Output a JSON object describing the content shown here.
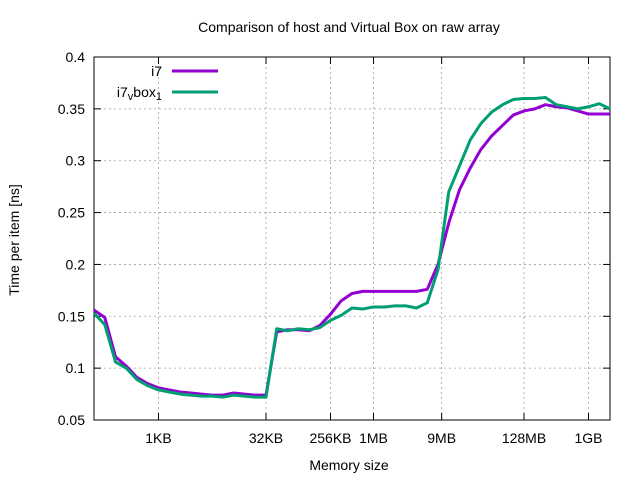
{
  "chart_data": {
    "type": "line",
    "title": "Comparison of host and Virtual Box on raw array",
    "xlabel": "Memory size",
    "ylabel": "Time per item [ns]",
    "x_scale": "log2",
    "x_unit": "bytes",
    "xlim": [
      128,
      2147483648
    ],
    "ylim": [
      0.05,
      0.4
    ],
    "grid": true,
    "legend_placement": "top-left",
    "x_ticks": [
      {
        "value": 1024,
        "label": "1KB"
      },
      {
        "value": 32768,
        "label": "32KB"
      },
      {
        "value": 262144,
        "label": "256KB"
      },
      {
        "value": 1048576,
        "label": "1MB"
      },
      {
        "value": 9437184,
        "label": "9MB"
      },
      {
        "value": 134217728,
        "label": "128MB"
      },
      {
        "value": 1073741824,
        "label": "1GB"
      }
    ],
    "y_ticks": [
      {
        "value": 0.05,
        "label": "0.05"
      },
      {
        "value": 0.1,
        "label": "0.1"
      },
      {
        "value": 0.15,
        "label": "0.15"
      },
      {
        "value": 0.2,
        "label": "0.2"
      },
      {
        "value": 0.25,
        "label": "0.25"
      },
      {
        "value": 0.3,
        "label": "0.3"
      },
      {
        "value": 0.35,
        "label": "0.35"
      },
      {
        "value": 0.4,
        "label": "0.4"
      }
    ],
    "series": [
      {
        "name": "i7",
        "legend_parts": [
          {
            "text": "i7",
            "shift": "none"
          }
        ],
        "color": "#9400d3",
        "points": [
          [
            128,
            0.156
          ],
          [
            181,
            0.149
          ],
          [
            256,
            0.111
          ],
          [
            362,
            0.102
          ],
          [
            512,
            0.091
          ],
          [
            724,
            0.085
          ],
          [
            1024,
            0.081
          ],
          [
            1448,
            0.079
          ],
          [
            2048,
            0.077
          ],
          [
            2896,
            0.076
          ],
          [
            4096,
            0.075
          ],
          [
            5793,
            0.074
          ],
          [
            8192,
            0.074
          ],
          [
            11585,
            0.076
          ],
          [
            16384,
            0.075
          ],
          [
            23170,
            0.074
          ],
          [
            32768,
            0.074
          ],
          [
            46341,
            0.135
          ],
          [
            65536,
            0.137
          ],
          [
            92682,
            0.137
          ],
          [
            131072,
            0.136
          ],
          [
            185364,
            0.141
          ],
          [
            262144,
            0.152
          ],
          [
            370728,
            0.165
          ],
          [
            524288,
            0.172
          ],
          [
            741455,
            0.174
          ],
          [
            1048576,
            0.174
          ],
          [
            1482910,
            0.174
          ],
          [
            2097152,
            0.174
          ],
          [
            2965821,
            0.174
          ],
          [
            4194304,
            0.174
          ],
          [
            5931642,
            0.176
          ],
          [
            8388608,
            0.2
          ],
          [
            11863283,
            0.24
          ],
          [
            16777216,
            0.272
          ],
          [
            23726566,
            0.293
          ],
          [
            33554432,
            0.311
          ],
          [
            47453133,
            0.324
          ],
          [
            67108864,
            0.334
          ],
          [
            94906266,
            0.344
          ],
          [
            134217728,
            0.348
          ],
          [
            189812531,
            0.35
          ],
          [
            268435456,
            0.354
          ],
          [
            379625062,
            0.352
          ],
          [
            536870912,
            0.351
          ],
          [
            759250125,
            0.348
          ],
          [
            1073741824,
            0.345
          ],
          [
            1518500250,
            0.345
          ],
          [
            2147483648,
            0.345
          ]
        ]
      },
      {
        "name": "i7_vbox_1",
        "legend_parts": [
          {
            "text": "i7",
            "shift": "none"
          },
          {
            "text": "v",
            "shift": "sub"
          },
          {
            "text": "box",
            "shift": "none"
          },
          {
            "text": "1",
            "shift": "sub"
          }
        ],
        "color": "#009e73",
        "points": [
          [
            128,
            0.153
          ],
          [
            181,
            0.142
          ],
          [
            256,
            0.106
          ],
          [
            362,
            0.1
          ],
          [
            512,
            0.089
          ],
          [
            724,
            0.083
          ],
          [
            1024,
            0.079
          ],
          [
            1448,
            0.077
          ],
          [
            2048,
            0.075
          ],
          [
            2896,
            0.074
          ],
          [
            4096,
            0.073
          ],
          [
            5793,
            0.073
          ],
          [
            8192,
            0.072
          ],
          [
            11585,
            0.074
          ],
          [
            16384,
            0.073
          ],
          [
            23170,
            0.072
          ],
          [
            32768,
            0.072
          ],
          [
            46341,
            0.138
          ],
          [
            65536,
            0.136
          ],
          [
            92682,
            0.138
          ],
          [
            131072,
            0.137
          ],
          [
            185364,
            0.139
          ],
          [
            262144,
            0.146
          ],
          [
            370728,
            0.151
          ],
          [
            524288,
            0.158
          ],
          [
            741455,
            0.157
          ],
          [
            1048576,
            0.159
          ],
          [
            1482910,
            0.159
          ],
          [
            2097152,
            0.16
          ],
          [
            2965821,
            0.16
          ],
          [
            4194304,
            0.158
          ],
          [
            5931642,
            0.163
          ],
          [
            8388608,
            0.195
          ],
          [
            11863283,
            0.27
          ],
          [
            16777216,
            0.295
          ],
          [
            23726566,
            0.32
          ],
          [
            33554432,
            0.336
          ],
          [
            47453133,
            0.347
          ],
          [
            67108864,
            0.354
          ],
          [
            94906266,
            0.359
          ],
          [
            134217728,
            0.36
          ],
          [
            189812531,
            0.36
          ],
          [
            268435456,
            0.361
          ],
          [
            379625062,
            0.354
          ],
          [
            536870912,
            0.352
          ],
          [
            759250125,
            0.35
          ],
          [
            1073741824,
            0.352
          ],
          [
            1518500250,
            0.355
          ],
          [
            2147483648,
            0.35
          ]
        ]
      }
    ]
  }
}
